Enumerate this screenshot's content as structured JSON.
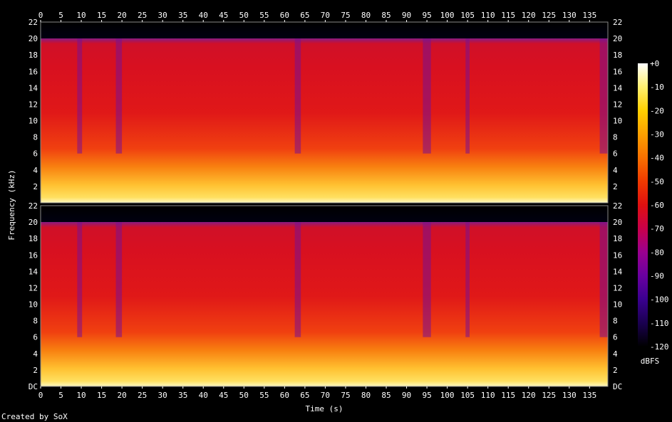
{
  "chart_data": {
    "type": "heatmap",
    "title": "",
    "xlabel": "Time (s)",
    "ylabel": "Frequency (kHz)",
    "credit": "Created by SoX",
    "xlim": [
      0,
      139.5
    ],
    "ylim": [
      0,
      22
    ],
    "x_ticks": [
      0,
      5,
      10,
      15,
      20,
      25,
      30,
      35,
      40,
      45,
      50,
      55,
      60,
      65,
      70,
      75,
      80,
      85,
      90,
      95,
      100,
      105,
      110,
      115,
      120,
      125,
      130,
      135
    ],
    "channels": [
      {
        "y_ticks": [
          {
            "v": 2,
            "label": "2"
          },
          {
            "v": 4,
            "label": "4"
          },
          {
            "v": 6,
            "label": "6"
          },
          {
            "v": 8,
            "label": "8"
          },
          {
            "v": 10,
            "label": "10"
          },
          {
            "v": 12,
            "label": "12"
          },
          {
            "v": 14,
            "label": "14"
          },
          {
            "v": 16,
            "label": "16"
          },
          {
            "v": 18,
            "label": "18"
          },
          {
            "v": 20,
            "label": "20"
          },
          {
            "v": 22,
            "label": "22"
          }
        ]
      },
      {
        "y_ticks": [
          {
            "v": 0,
            "label": "DC"
          },
          {
            "v": 2,
            "label": "2"
          },
          {
            "v": 4,
            "label": "4"
          },
          {
            "v": 6,
            "label": "6"
          },
          {
            "v": 8,
            "label": "8"
          },
          {
            "v": 10,
            "label": "10"
          },
          {
            "v": 12,
            "label": "12"
          },
          {
            "v": 14,
            "label": "14"
          },
          {
            "v": 16,
            "label": "16"
          },
          {
            "v": 18,
            "label": "18"
          },
          {
            "v": 20,
            "label": "20"
          },
          {
            "v": 22,
            "label": "22"
          }
        ]
      }
    ],
    "colorbar": {
      "unit": "dBFS",
      "range": [
        -120,
        0
      ],
      "ticks": [
        "+0",
        "-10",
        "-20",
        "-30",
        "-40",
        "-50",
        "-60",
        "-70",
        "-80",
        "-90",
        "-100",
        "-110",
        "-120"
      ],
      "colors": [
        "#000000",
        "#1a0050",
        "#3a0090",
        "#6a00a0",
        "#9a0090",
        "#c8004a",
        "#e01010",
        "#f03a00",
        "#f87000",
        "#fca000",
        "#ffd000",
        "#fff070",
        "#ffffff"
      ]
    },
    "cutoff_khz": 20,
    "quiet_segments": [
      [
        9,
        10.2
      ],
      [
        18.5,
        20
      ],
      [
        62.5,
        64
      ],
      [
        94,
        96
      ],
      [
        104.5,
        105.5
      ],
      [
        137.5,
        139.5
      ]
    ]
  }
}
